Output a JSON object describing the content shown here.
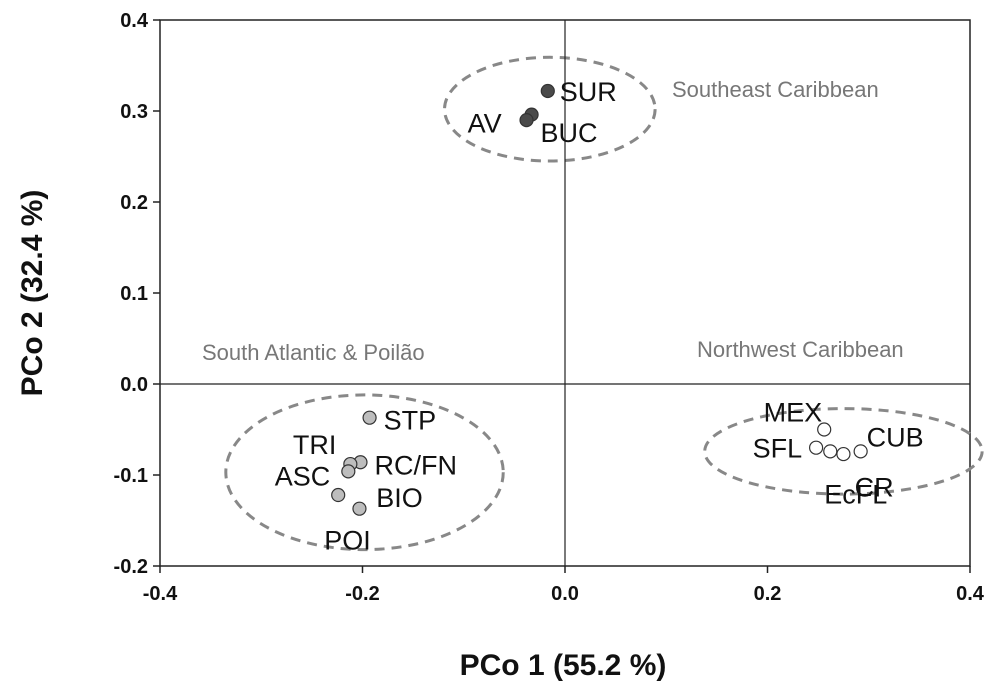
{
  "chart_data": {
    "type": "scatter",
    "xlabel": "PCo 1 (55.2 %)",
    "ylabel": "PCo 2 (32.4 %)",
    "xlim": [
      -0.4,
      0.4
    ],
    "ylim": [
      -0.2,
      0.4
    ],
    "xticks": [
      "-0.4",
      "-0.2",
      "0.0",
      "0.2",
      "0.4"
    ],
    "yticks": [
      "-0.2",
      "-0.1",
      "0.0",
      "0.1",
      "0.2",
      "0.3",
      "0.4"
    ],
    "grid": false,
    "reference_lines": {
      "x": 0,
      "y": 0
    },
    "groups": [
      {
        "name": "Southeast Caribbean",
        "fill": "#4a4a4a",
        "points": [
          {
            "label": "SUR",
            "x": -0.017,
            "y": 0.322
          },
          {
            "label": "AV",
            "x": -0.033,
            "y": 0.296
          },
          {
            "label": "BUC",
            "x": -0.038,
            "y": 0.29
          }
        ],
        "ellipse": {
          "cx": -0.015,
          "cy": 0.302,
          "rx": 0.104,
          "ry": 0.057
        }
      },
      {
        "name": "South Atlantic & Poilão",
        "fill": "#bdbdbd",
        "points": [
          {
            "label": "STP",
            "x": -0.193,
            "y": -0.037
          },
          {
            "label": "RC/FN",
            "x": -0.202,
            "y": -0.086
          },
          {
            "label": "TRI",
            "x": -0.212,
            "y": -0.088
          },
          {
            "label": "ASC",
            "x": -0.214,
            "y": -0.096
          },
          {
            "label": "BIO",
            "x": -0.224,
            "y": -0.122
          },
          {
            "label": "POI",
            "x": -0.203,
            "y": -0.137
          }
        ],
        "ellipse": {
          "cx": -0.198,
          "cy": -0.097,
          "rx": 0.137,
          "ry": 0.085
        }
      },
      {
        "name": "Northwest Caribbean",
        "fill": "#ffffff",
        "points": [
          {
            "label": "MEX",
            "x": 0.256,
            "y": -0.05
          },
          {
            "label": "SFL",
            "x": 0.248,
            "y": -0.07
          },
          {
            "label": "EcFL",
            "x": 0.262,
            "y": -0.074
          },
          {
            "label": "",
            "x": 0.275,
            "y": -0.077
          },
          {
            "label": "CUB",
            "x": 0.292,
            "y": -0.074
          }
        ],
        "ellipse": {
          "cx": 0.275,
          "cy": -0.074,
          "rx": 0.137,
          "ry": 0.047
        }
      }
    ]
  },
  "region_labels": {
    "southeast": "Southeast Caribbean",
    "south_atlantic": "South Atlantic & Poilão",
    "northwest": "Northwest Caribbean"
  },
  "extra_point_labels": {
    "cr": "CR"
  }
}
